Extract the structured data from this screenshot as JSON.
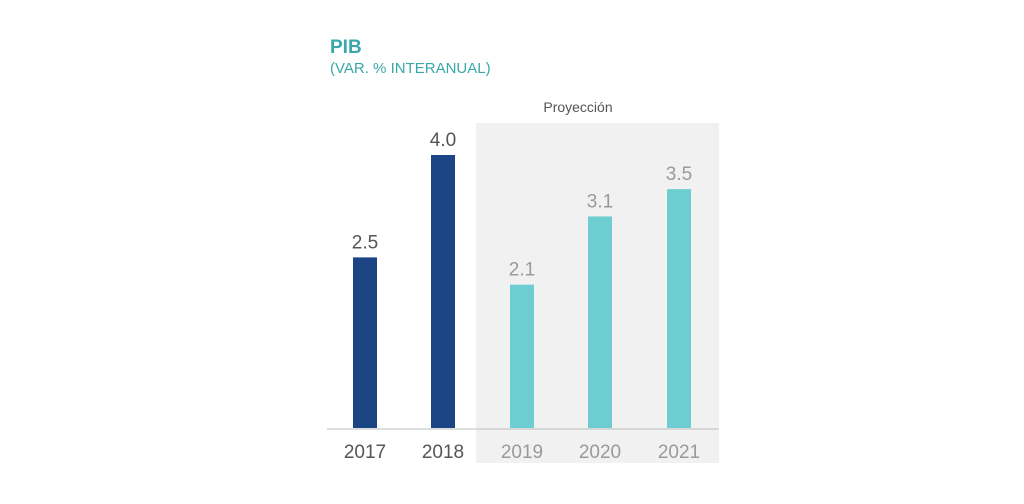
{
  "chart_data": {
    "type": "bar",
    "title": "PIB",
    "subtitle": "(VAR. % INTERANUAL)",
    "projection_label": "Proyección",
    "categories": [
      "2017",
      "2018",
      "2019",
      "2020",
      "2021"
    ],
    "values": [
      2.5,
      4.0,
      2.1,
      3.1,
      3.5
    ],
    "value_labels": [
      "2.5",
      "4.0",
      "2.1",
      "3.1",
      "3.5"
    ],
    "projected": [
      false,
      false,
      true,
      true,
      true
    ],
    "ylim": [
      0,
      4.0
    ],
    "grid": false,
    "colors": {
      "actual_bar": "#1b4585",
      "projected_bar": "#6ecdd0",
      "actual_label": "#555555",
      "projected_label": "#9a9a9a",
      "projection_bg": "#f1f1f1",
      "title": "#3aa7a9"
    }
  }
}
